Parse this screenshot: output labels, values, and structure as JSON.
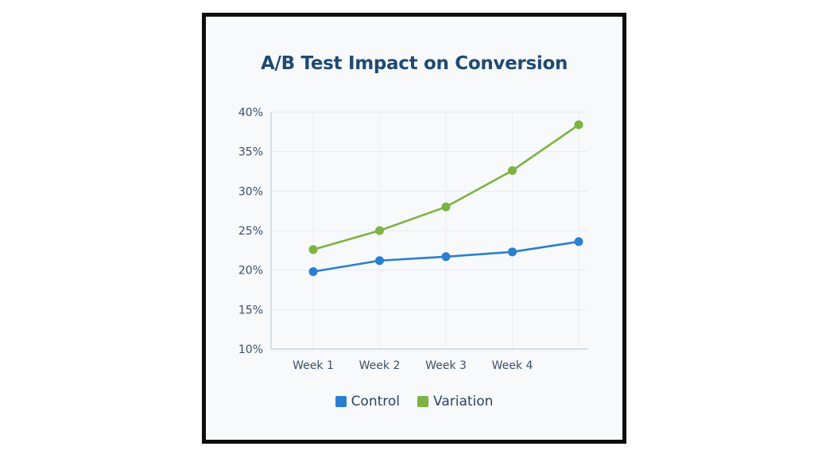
{
  "chart_data": {
    "type": "line",
    "title": "A/B Test Impact on Conversion",
    "xlabel": "",
    "ylabel": "",
    "categories": [
      "Week 1",
      "Week 2",
      "Week 3",
      "Week 4",
      ""
    ],
    "ylim": [
      10,
      40
    ],
    "yticks": [
      10,
      15,
      20,
      25,
      30,
      35,
      40
    ],
    "ytick_labels": [
      "10%",
      "15%",
      "20%",
      "25%",
      "30%",
      "35%",
      "40%"
    ],
    "grid": true,
    "legend_position": "bottom",
    "series": [
      {
        "name": "Control",
        "color": "#2a7fd0",
        "values": [
          19.8,
          21.2,
          21.7,
          22.3,
          23.6
        ]
      },
      {
        "name": "Variation",
        "color": "#7cb342",
        "values": [
          22.6,
          25.0,
          28.0,
          32.6,
          38.4
        ]
      }
    ]
  }
}
